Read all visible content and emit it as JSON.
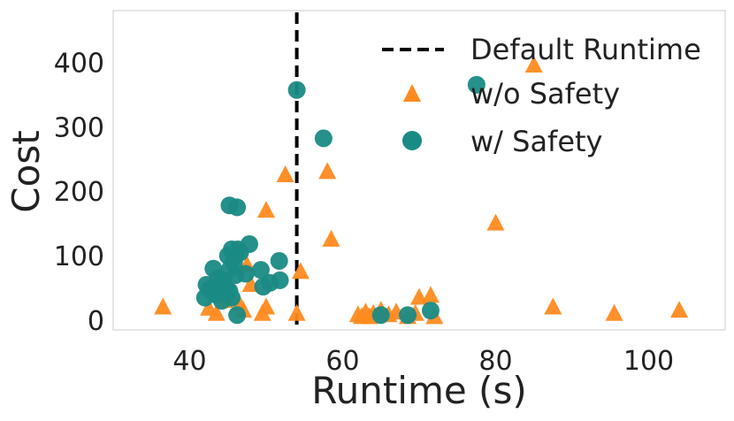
{
  "chart_data": {
    "type": "scatter",
    "xlabel": "Runtime (s)",
    "ylabel": "Cost",
    "xlim": [
      30,
      110
    ],
    "ylim": [
      -15,
      480
    ],
    "xticks": [
      40,
      60,
      80,
      100
    ],
    "yticks": [
      0,
      100,
      200,
      300,
      400
    ],
    "grid": false,
    "legend_position": "top-right",
    "reference_line": {
      "label": "Default Runtime",
      "x": 54,
      "color": "#000000",
      "style": "dashed"
    },
    "series": [
      {
        "name": "w/o Safety",
        "marker": "triangle",
        "color": "#ff8a1f",
        "points": [
          [
            36.5,
            20
          ],
          [
            42.5,
            18
          ],
          [
            43.5,
            10
          ],
          [
            44.5,
            30
          ],
          [
            45.5,
            35
          ],
          [
            46.5,
            25
          ],
          [
            47,
            15
          ],
          [
            49.5,
            10
          ],
          [
            50,
            20
          ],
          [
            47.5,
            85
          ],
          [
            48,
            55
          ],
          [
            50,
            170
          ],
          [
            52.5,
            225
          ],
          [
            54,
            10
          ],
          [
            54.5,
            75
          ],
          [
            58,
            230
          ],
          [
            58.5,
            125
          ],
          [
            62,
            8
          ],
          [
            62.5,
            5
          ],
          [
            63,
            12
          ],
          [
            63.5,
            5
          ],
          [
            64,
            10
          ],
          [
            65,
            15
          ],
          [
            66,
            8
          ],
          [
            67,
            12
          ],
          [
            68.5,
            5
          ],
          [
            69.5,
            10
          ],
          [
            70,
            35
          ],
          [
            71.5,
            38
          ],
          [
            72,
            5
          ],
          [
            80,
            150
          ],
          [
            85,
            395
          ],
          [
            87.5,
            20
          ],
          [
            95.5,
            10
          ],
          [
            104,
            15
          ]
        ]
      },
      {
        "name": "w/ Safety",
        "marker": "circle",
        "color": "#1a8a84",
        "points": [
          [
            42,
            35
          ],
          [
            42.2,
            55
          ],
          [
            42.6,
            48
          ],
          [
            43,
            45
          ],
          [
            43.1,
            80
          ],
          [
            43.4,
            40
          ],
          [
            43.7,
            65
          ],
          [
            44,
            55
          ],
          [
            44.2,
            30
          ],
          [
            44.5,
            60
          ],
          [
            44.8,
            50
          ],
          [
            45,
            100
          ],
          [
            45.2,
            45
          ],
          [
            45.3,
            80
          ],
          [
            45.5,
            35
          ],
          [
            45.5,
            110
          ],
          [
            45.8,
            90
          ],
          [
            46,
            70
          ],
          [
            46,
            100
          ],
          [
            46.3,
            110
          ],
          [
            46.6,
            105
          ],
          [
            47.3,
            72
          ],
          [
            47.8,
            118
          ],
          [
            49.3,
            78
          ],
          [
            49.6,
            52
          ],
          [
            50.5,
            58
          ],
          [
            51.8,
            62
          ],
          [
            51.7,
            92
          ],
          [
            54,
            357
          ],
          [
            57.5,
            282
          ],
          [
            45.2,
            178
          ],
          [
            46.2,
            175
          ],
          [
            46.2,
            8
          ],
          [
            65,
            8
          ],
          [
            68.5,
            8
          ],
          [
            71.5,
            15
          ],
          [
            77.5,
            365
          ]
        ]
      }
    ]
  }
}
